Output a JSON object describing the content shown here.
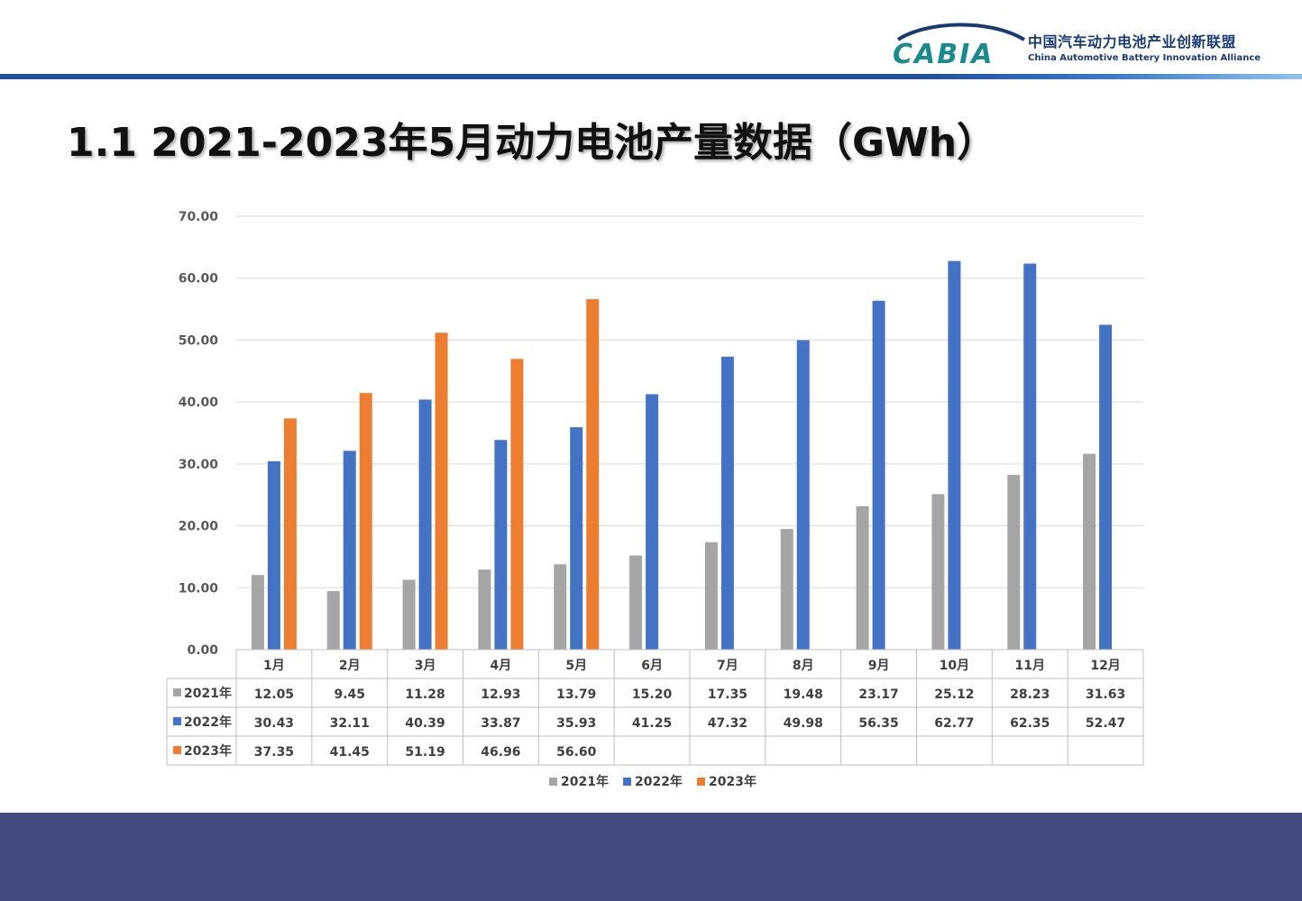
{
  "header": {
    "logo_mark": "CABIA",
    "org_cn": "中国汽车动力电池产业创新联盟",
    "org_en": "China Automotive Battery Innovation Alliance"
  },
  "page": {
    "title": "1.1 2021-2023年5月动力电池产量数据（GWh）"
  },
  "chart_data": {
    "type": "bar",
    "categories": [
      "1月",
      "2月",
      "3月",
      "4月",
      "5月",
      "6月",
      "7月",
      "8月",
      "9月",
      "10月",
      "11月",
      "12月"
    ],
    "series": [
      {
        "name": "2021年",
        "color": "#a5a5a5",
        "values": [
          12.05,
          9.45,
          11.28,
          12.93,
          13.79,
          15.2,
          17.35,
          19.48,
          23.17,
          25.12,
          28.23,
          31.63
        ]
      },
      {
        "name": "2022年",
        "color": "#4472c4",
        "values": [
          30.43,
          32.11,
          40.39,
          33.87,
          35.93,
          41.25,
          47.32,
          49.98,
          56.35,
          62.77,
          62.35,
          52.47
        ]
      },
      {
        "name": "2023年",
        "color": "#ed7d31",
        "values": [
          37.35,
          41.45,
          51.19,
          46.96,
          56.6,
          null,
          null,
          null,
          null,
          null,
          null,
          null
        ]
      }
    ],
    "ylim": [
      0,
      70
    ],
    "yticks": [
      0,
      10,
      20,
      30,
      40,
      50,
      60,
      70
    ],
    "ytick_labels": [
      "0.00",
      "10.00",
      "20.00",
      "30.00",
      "40.00",
      "50.00",
      "60.00",
      "70.00"
    ],
    "grid": true,
    "data_table": true,
    "legend": "bottom",
    "title": "",
    "xlabel": "",
    "ylabel": ""
  }
}
